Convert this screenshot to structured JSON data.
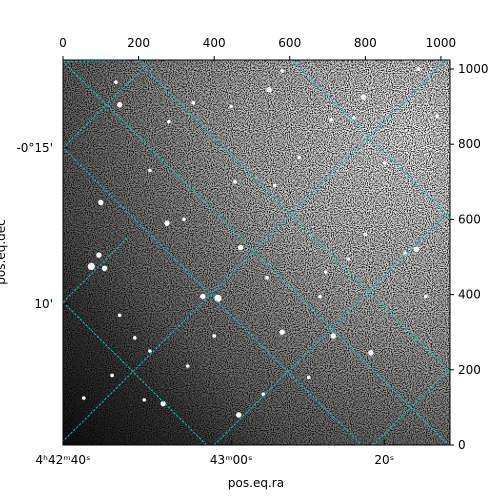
{
  "chart_data": {
    "type": "image",
    "colormap": "gray",
    "grid_color": "#00d2d2",
    "frame_color": "#000000",
    "pixel_axes": {
      "top_ticks": [
        0,
        200,
        400,
        600,
        800,
        1000
      ],
      "right_ticks": [
        0,
        200,
        400,
        600,
        800,
        1000
      ],
      "xlim": [
        0,
        1024
      ],
      "ylim": [
        0,
        1024
      ]
    },
    "world_axes": {
      "xlabel": "pos.eq.ra",
      "ylabel": "pos.eq.dec",
      "ra_labels": [
        {
          "text": "4ʰ42ᵐ40ˢ",
          "pix_x": 0
        },
        {
          "text": "43ᵐ00ˢ",
          "pix_x": 445
        },
        {
          "text": "20ˢ",
          "pix_x": 850
        }
      ],
      "dec_labels": [
        {
          "text": "-0°15'",
          "pix_y": 790
        },
        {
          "text": "10'",
          "pix_y": 375
        }
      ]
    },
    "grid_lines": {
      "ra": [
        {
          "p1": [
            -100,
            1120
          ],
          "p2": [
            1130,
            -110
          ]
        },
        {
          "p1": [
            -10,
            0
          ],
          "p2": [
            1024,
            1034
          ]
        },
        {
          "p1": [
            400,
            0
          ],
          "p2": [
            1024,
            624
          ]
        },
        {
          "p1": [
            0,
            1020
          ],
          "p2": [
            205,
            1024
          ]
        },
        {
          "p1": [
            820,
            0
          ],
          "p2": [
            1024,
            204
          ]
        }
      ],
      "dec": [
        {
          "p1": [
            0,
            380
          ],
          "p2": [
            380,
            0
          ]
        },
        {
          "p1": [
            0,
            790
          ],
          "p2": [
            790,
            0
          ]
        },
        {
          "p1": [
            195,
            1024
          ],
          "p2": [
            1024,
            195
          ]
        },
        {
          "p1": [
            605,
            1024
          ],
          "p2": [
            1024,
            605
          ]
        },
        {
          "p1": [
            0,
            790
          ],
          "p2": [
            234,
            1024
          ]
        },
        {
          "p1": [
            0,
            380
          ],
          "p2": [
            174,
            554
          ]
        }
      ]
    },
    "stars": [
      [
        150,
        905,
        3
      ],
      [
        140,
        965,
        2
      ],
      [
        280,
        860,
        2
      ],
      [
        345,
        910,
        2
      ],
      [
        230,
        730,
        2
      ],
      [
        100,
        645,
        3
      ],
      [
        75,
        475,
        4
      ],
      [
        110,
        470,
        3
      ],
      [
        95,
        505,
        3
      ],
      [
        150,
        345,
        2
      ],
      [
        190,
        285,
        2
      ],
      [
        230,
        250,
        2
      ],
      [
        470,
        525,
        3
      ],
      [
        410,
        390,
        4
      ],
      [
        370,
        395,
        3
      ],
      [
        580,
        300,
        3
      ],
      [
        540,
        445,
        2
      ],
      [
        680,
        395,
        2
      ],
      [
        715,
        290,
        3
      ],
      [
        815,
        245,
        3
      ],
      [
        755,
        495,
        2
      ],
      [
        795,
        925,
        3
      ],
      [
        710,
        865,
        2
      ],
      [
        770,
        870,
        2
      ],
      [
        545,
        945,
        3
      ],
      [
        445,
        900,
        2
      ],
      [
        560,
        690,
        2
      ],
      [
        625,
        765,
        2
      ],
      [
        455,
        700,
        2
      ],
      [
        265,
        110,
        3
      ],
      [
        215,
        120,
        2
      ],
      [
        465,
        80,
        3
      ],
      [
        530,
        135,
        2
      ],
      [
        695,
        460,
        2
      ],
      [
        650,
        180,
        2
      ],
      [
        800,
        560,
        2
      ],
      [
        935,
        520,
        3
      ],
      [
        960,
        395,
        2
      ],
      [
        905,
        510,
        2
      ],
      [
        130,
        185,
        2
      ],
      [
        55,
        125,
        2
      ],
      [
        330,
        210,
        2
      ],
      [
        400,
        290,
        2
      ],
      [
        850,
        750,
        2
      ],
      [
        940,
        1000,
        2
      ],
      [
        990,
        875,
        2
      ],
      [
        580,
        995,
        2
      ],
      [
        275,
        590,
        3
      ],
      [
        320,
        600,
        2
      ]
    ]
  }
}
